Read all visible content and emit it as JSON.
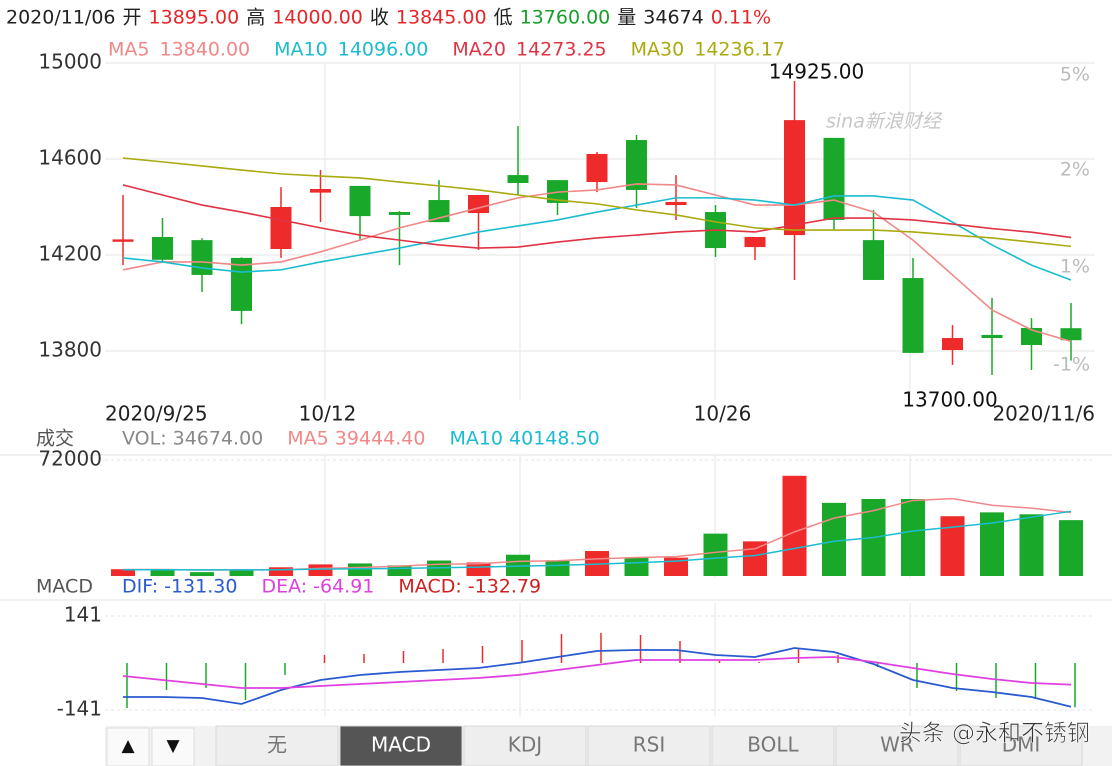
{
  "header": {
    "items": [
      {
        "text": "2020/11/06",
        "color": "#222222"
      },
      {
        "text": "开",
        "color": "#222222"
      },
      {
        "text": "13895.00",
        "color": "#e8262a"
      },
      {
        "text": "高",
        "color": "#222222"
      },
      {
        "text": "14000.00",
        "color": "#e8262a"
      },
      {
        "text": "收",
        "color": "#222222"
      },
      {
        "text": "13845.00",
        "color": "#e8262a"
      },
      {
        "text": "低",
        "color": "#222222"
      },
      {
        "text": "13760.00",
        "color": "#17a02a"
      },
      {
        "text": "量",
        "color": "#222222"
      },
      {
        "text": "34674",
        "color": "#222222"
      },
      {
        "text": "0.11%",
        "color": "#e8262a"
      }
    ]
  },
  "chart_data": [
    {
      "type": "candlestick",
      "categories": [
        "2020/9/25",
        null,
        null,
        null,
        null,
        "10/12",
        null,
        null,
        null,
        null,
        null,
        null,
        null,
        null,
        null,
        "10/26",
        null,
        null,
        null,
        null,
        null,
        null,
        null,
        null,
        "2020/11/6"
      ],
      "open": [
        14255,
        14275,
        14262,
        14188,
        14225,
        14460,
        14488,
        14379,
        14429,
        14375,
        14533,
        14512,
        14504,
        14679,
        14408,
        14379,
        14233,
        14283,
        14688,
        14262,
        14104,
        13804,
        13867,
        13896,
        13895
      ],
      "high": [
        14450,
        14354,
        14270,
        14190,
        14483,
        14554,
        14488,
        14383,
        14512,
        14450,
        14737,
        14512,
        14629,
        14700,
        14533,
        14408,
        14275,
        14925,
        14688,
        14387,
        14188,
        13908,
        14021,
        13937,
        14000
      ],
      "low": [
        14158,
        14171,
        14046,
        13912,
        14188,
        14337,
        14262,
        14158,
        14337,
        14221,
        14450,
        14367,
        14462,
        14396,
        14346,
        14192,
        14179,
        14096,
        14304,
        14096,
        13792,
        13742,
        13700,
        13721,
        13760
      ],
      "close": [
        14265,
        14180,
        14117,
        13967,
        14400,
        14475,
        14362,
        14367,
        14337,
        14450,
        14500,
        14417,
        14621,
        14471,
        14421,
        14229,
        14275,
        14762,
        14346,
        14096,
        13792,
        13854,
        13854,
        13825,
        13845
      ],
      "up_color": "#ee2a2a",
      "down_color": "#1aa82a",
      "series": [
        {
          "name": "MA5",
          "color": "#f08888",
          "legend_value": "13840.00",
          "values": [
            14138,
            14171,
            14171,
            14158,
            14171,
            14213,
            14262,
            14313,
            14354,
            14396,
            14438,
            14462,
            14471,
            14496,
            14492,
            14450,
            14408,
            14408,
            14429,
            14379,
            14262,
            14117,
            13971,
            13888,
            13840
          ]
        },
        {
          "name": "MA10",
          "color": "#1cbcd0",
          "legend_value": "14096.00",
          "values": [
            14188,
            14171,
            14146,
            14129,
            14138,
            14171,
            14200,
            14229,
            14262,
            14296,
            14321,
            14346,
            14379,
            14408,
            14438,
            14438,
            14429,
            14408,
            14446,
            14446,
            14429,
            14337,
            14242,
            14158,
            14096
          ]
        },
        {
          "name": "MA20",
          "color": "#e03444",
          "legend_value": "14273.25",
          "values": [
            14492,
            14450,
            14408,
            14379,
            14346,
            14313,
            14283,
            14262,
            14242,
            14229,
            14233,
            14254,
            14271,
            14283,
            14296,
            14304,
            14296,
            14325,
            14354,
            14354,
            14346,
            14329,
            14310,
            14295,
            14273
          ]
        },
        {
          "name": "MA30",
          "color": "#aaaa10",
          "legend_value": "14236.17",
          "values": [
            14604,
            14588,
            14571,
            14554,
            14538,
            14529,
            14521,
            14504,
            14488,
            14471,
            14450,
            14429,
            14413,
            14388,
            14367,
            14338,
            14313,
            14304,
            14304,
            14304,
            14296,
            14283,
            14271,
            14254,
            14236
          ]
        }
      ],
      "ylim": [
        13600,
        15000
      ],
      "yticks": [
        13800,
        14200,
        14600,
        15000
      ],
      "right_labels": [
        "5%",
        "2%",
        "1%",
        "-1%"
      ],
      "high_label": "14925.00",
      "low_label": "13700.00",
      "grid": true
    },
    {
      "type": "volume",
      "label": "成交",
      "series": [
        {
          "name": "VOL:",
          "color": "#888888",
          "legend_value": "34674.00",
          "values": [
            4200,
            4200,
            2400,
            3600,
            5400,
            7200,
            7800,
            6600,
            9600,
            8400,
            13200,
            9600,
            15500,
            11400,
            11400,
            26300,
            21500,
            62200,
            45400,
            47800,
            47800,
            37100,
            39500,
            38300,
            34674
          ]
        },
        {
          "name": "MA5",
          "color": "#f08888",
          "legend_value": "39444.40",
          "values": [
            4000,
            4000,
            3700,
            3800,
            3900,
            4700,
            5300,
            6100,
            7300,
            7600,
            9100,
            9500,
            10600,
            11500,
            12000,
            14700,
            16900,
            27400,
            35900,
            40600,
            46900,
            48000,
            43900,
            42100,
            39444
          ]
        },
        {
          "name": "MA10",
          "color": "#1cbcd0",
          "legend_value": "40148.50",
          "values": [
            3900,
            3900,
            3800,
            3800,
            3900,
            4300,
            4500,
            4700,
            5100,
            5500,
            6100,
            6600,
            7400,
            8200,
            9200,
            11100,
            12700,
            17100,
            21600,
            23900,
            27900,
            30300,
            32900,
            36500,
            40148
          ]
        }
      ],
      "ylim": [
        0,
        72000
      ],
      "yticks": [
        72000
      ]
    },
    {
      "type": "macd",
      "label": "MACD",
      "series": [
        {
          "name": "DIF:",
          "color": "#2a5ad0",
          "legend_value": "-131.30",
          "values": [
            -102,
            -102,
            -105,
            -123,
            -81,
            -51,
            -36,
            -27,
            -21,
            -15,
            0,
            18,
            36,
            39,
            39,
            24,
            18,
            45,
            33,
            -3,
            -51,
            -75,
            -87,
            -102,
            -131.3
          ]
        },
        {
          "name": "DEA:",
          "color": "#e040e0",
          "legend_value": "-64.91",
          "values": [
            -39,
            -51,
            -63,
            -75,
            -75,
            -69,
            -63,
            -57,
            -51,
            -45,
            -36,
            -21,
            -6,
            9,
            9,
            9,
            9,
            15,
            18,
            3,
            -15,
            -33,
            -48,
            -60,
            -64.91
          ]
        },
        {
          "name": "MACD:",
          "color": "#d02020",
          "legend_value": "-132.79",
          "values": [
            -135,
            -81,
            -75,
            -111,
            -36,
            24,
            27,
            36,
            42,
            51,
            69,
            87,
            90,
            84,
            66,
            6,
            3,
            45,
            24,
            -12,
            -75,
            -84,
            -105,
            -108,
            -132.79
          ]
        }
      ],
      "ylim": [
        -141,
        141
      ],
      "yticks": [
        -141,
        141
      ]
    }
  ],
  "tabs": {
    "arrows": [
      "▲",
      "▼"
    ],
    "items": [
      "无",
      "MACD",
      "KDJ",
      "RSI",
      "BOLL",
      "WR",
      "DMI"
    ],
    "selected_index": 1
  },
  "watermarks": [
    "sina新浪财经",
    "头条 @永和不锈钢"
  ]
}
